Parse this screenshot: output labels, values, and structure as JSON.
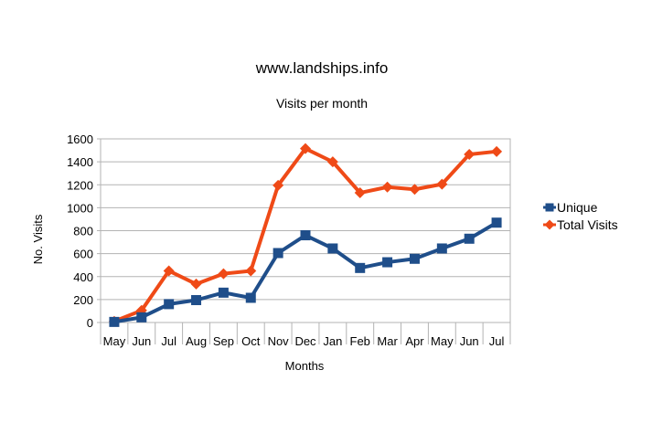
{
  "chart_data": {
    "type": "line",
    "title": "www.landships.info",
    "subtitle": "Visits per month",
    "xlabel": "Months",
    "ylabel": "No. Visits",
    "ylim": [
      0,
      1600
    ],
    "yticks": [
      "0",
      "200",
      "400",
      "600",
      "800",
      "1000",
      "1200",
      "1400",
      "1600"
    ],
    "categories": [
      "May",
      "Jun",
      "Jul",
      "Aug",
      "Sep",
      "Oct",
      "Nov",
      "Dec",
      "Jan",
      "Feb",
      "Mar",
      "Apr",
      "May",
      "Jun",
      "Jul"
    ],
    "grid": true,
    "legend_position": "right",
    "series": [
      {
        "name": "Unique",
        "color": "#1f4e8a",
        "marker": "square",
        "values": [
          5,
          45,
          160,
          195,
          260,
          215,
          605,
          760,
          645,
          475,
          525,
          555,
          645,
          730,
          870
        ]
      },
      {
        "name": "Total Visits",
        "color": "#ef4a17",
        "marker": "diamond",
        "values": [
          10,
          105,
          450,
          335,
          425,
          450,
          1195,
          1515,
          1400,
          1130,
          1180,
          1160,
          1205,
          1465,
          1490
        ]
      }
    ]
  }
}
